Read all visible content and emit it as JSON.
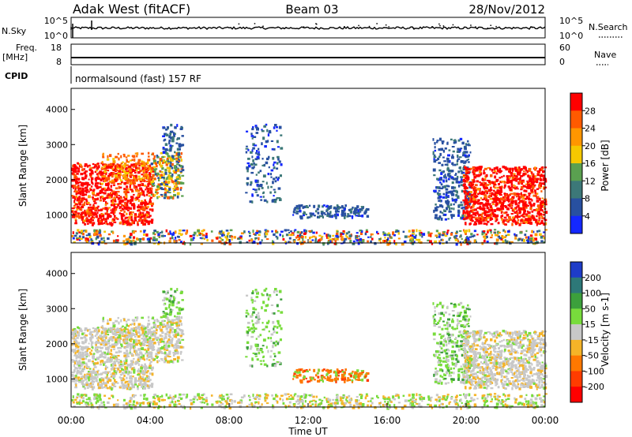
{
  "header": {
    "station": "Adak West (fitACF)",
    "beam": "Beam 03",
    "date": "28/Nov/2012"
  },
  "top_panels": {
    "nsky_label": "N.Sky",
    "nsky_ticks": [
      "10^5",
      "10^0"
    ],
    "nsearch_label": "N.Search",
    "nsearch_ticks": [
      "10^5",
      "10^0"
    ],
    "freq_label": "Freq.",
    "freq_unit": "[MHz]",
    "freq_ticks": [
      "18",
      "8"
    ],
    "nave_label": "Nave",
    "nave_ticks": [
      "60",
      "0"
    ],
    "cpid_label": "CPID",
    "cpid_text": "normalsound (fast) 157 RF"
  },
  "chart_data": [
    {
      "type": "heatmap",
      "name": "power",
      "ylabel": "Slant Range [km]",
      "xlabel": "",
      "ylim": [
        200,
        4600
      ],
      "yticks": [
        "1000",
        "2000",
        "3000",
        "4000"
      ],
      "colorbar_label": "Power [dB]",
      "colorbar_ticks": [
        "28",
        "24",
        "20",
        "16",
        "12",
        "8",
        "4"
      ],
      "colors": [
        "#ff0000",
        "#ff5a00",
        "#ff9600",
        "#f5c800",
        "#5aa050",
        "#3c7878",
        "#2850a0",
        "#1428ff"
      ]
    },
    {
      "type": "heatmap",
      "name": "velocity",
      "ylabel": "Slant Range [km]",
      "xlabel": "Time UT",
      "ylim": [
        200,
        4600
      ],
      "yticks": [
        "1000",
        "2000",
        "3000",
        "4000"
      ],
      "colorbar_label": "Velocity [m s-1]",
      "colorbar_ticks": [
        "200",
        "100",
        "50",
        "15",
        "-15",
        "-50",
        "-100",
        "-200"
      ],
      "colors": [
        "#1e3cc8",
        "#2d7878",
        "#3ca03c",
        "#78dc3c",
        "#c8c8c8",
        "#f5b428",
        "#ff7800",
        "#ff3c00",
        "#ff0000"
      ]
    }
  ],
  "x_axis": {
    "ticks": [
      "00:00",
      "04:00",
      "08:00",
      "12:00",
      "16:00",
      "20:00",
      "00:00"
    ]
  }
}
